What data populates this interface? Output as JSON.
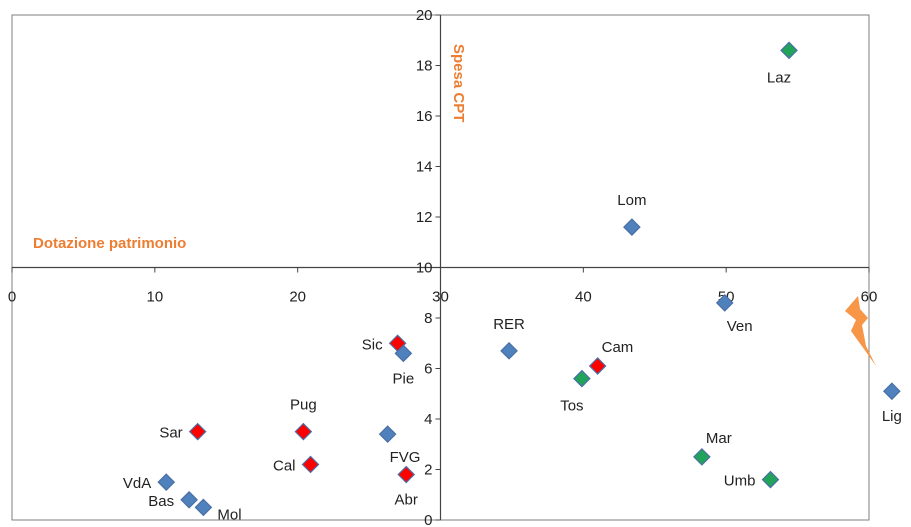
{
  "chart_data": {
    "type": "scatter",
    "xlim": [
      0,
      60
    ],
    "ylim": [
      0,
      20
    ],
    "x_ticks": [
      "0",
      "10",
      "20",
      "30",
      "40",
      "50",
      "60"
    ],
    "y_ticks": [
      "0",
      "2",
      "4",
      "6",
      "8",
      "10",
      "12",
      "14",
      "16",
      "18",
      "20"
    ],
    "xlabel": "Dotazione patrimonio",
    "ylabel": "Spesa CPT",
    "axis_cross": [
      30,
      10
    ],
    "grid": false,
    "colors": {
      "axis_title": "#ed7d31",
      "frame": "#7f7f7f",
      "marker_edge": "#4a6fa5",
      "blue": "#4f81bd",
      "green": "#22a35a",
      "red": "#ff0000",
      "bolt": "#f79646"
    },
    "points": [
      {
        "label": "Laz",
        "x": 54.4,
        "y": 18.6,
        "color": "green",
        "label_pos": "below-left"
      },
      {
        "label": "Lom",
        "x": 43.4,
        "y": 11.6,
        "color": "blue",
        "label_pos": "above"
      },
      {
        "label": "Ven",
        "x": 49.9,
        "y": 8.6,
        "color": "blue",
        "label_pos": "below-right"
      },
      {
        "label": "RER",
        "x": 34.8,
        "y": 6.7,
        "color": "blue",
        "label_pos": "above"
      },
      {
        "label": "Cam",
        "x": 41.0,
        "y": 6.1,
        "color": "red",
        "label_pos": "above-right"
      },
      {
        "label": "Tos",
        "x": 39.9,
        "y": 5.6,
        "color": "green",
        "label_pos": "below-left"
      },
      {
        "label": "Lig",
        "x": 61.6,
        "y": 5.1,
        "color": "blue",
        "label_pos": "below"
      },
      {
        "label": "Mar",
        "x": 48.3,
        "y": 2.5,
        "color": "green",
        "label_pos": "above-right"
      },
      {
        "label": "Umb",
        "x": 53.1,
        "y": 1.6,
        "color": "green",
        "label_pos": "left"
      },
      {
        "label": "Sic",
        "x": 27.0,
        "y": 7.0,
        "color": "red",
        "label_pos": "left"
      },
      {
        "label": "Pie",
        "x": 27.4,
        "y": 6.6,
        "color": "blue",
        "label_pos": "below"
      },
      {
        "label": "Pug",
        "x": 20.4,
        "y": 3.5,
        "color": "red",
        "label_pos": "above"
      },
      {
        "label": "Sar",
        "x": 13.0,
        "y": 3.5,
        "color": "red",
        "label_pos": "left"
      },
      {
        "label": "FVG",
        "x": 26.3,
        "y": 3.4,
        "color": "blue",
        "label_pos": "below-right"
      },
      {
        "label": "Cal",
        "x": 20.9,
        "y": 2.2,
        "color": "red",
        "label_pos": "left"
      },
      {
        "label": "Abr",
        "x": 27.6,
        "y": 1.8,
        "color": "red",
        "label_pos": "below"
      },
      {
        "label": "VdA",
        "x": 10.8,
        "y": 1.5,
        "color": "blue",
        "label_pos": "left"
      },
      {
        "label": "Bas",
        "x": 12.4,
        "y": 0.8,
        "color": "blue",
        "label_pos": "left"
      },
      {
        "label": "Mol",
        "x": 13.4,
        "y": 0.5,
        "color": "blue",
        "label_pos": "right"
      }
    ]
  }
}
